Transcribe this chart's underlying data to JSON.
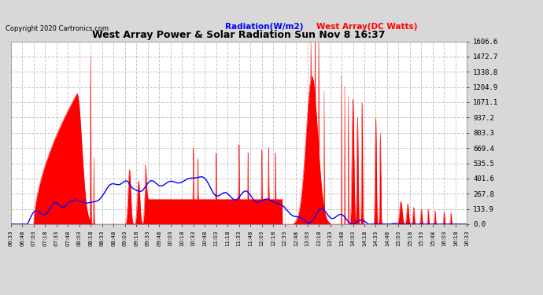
{
  "title": "West Array Power & Solar Radiation Sun Nov 8 16:37",
  "copyright": "Copyright 2020 Cartronics.com",
  "legend_radiation": "Radiation(W/m2)",
  "legend_west": "West Array(DC Watts)",
  "y_ticks": [
    0.0,
    133.9,
    267.8,
    401.6,
    535.5,
    669.4,
    803.3,
    937.2,
    1071.1,
    1204.9,
    1338.8,
    1472.7,
    1606.6
  ],
  "y_max": 1606.6,
  "x_labels": [
    "06:33",
    "06:48",
    "07:03",
    "07:18",
    "07:33",
    "07:48",
    "08:03",
    "08:18",
    "08:33",
    "08:48",
    "09:03",
    "09:18",
    "09:33",
    "09:48",
    "10:03",
    "10:18",
    "10:33",
    "10:48",
    "11:03",
    "11:18",
    "11:33",
    "11:48",
    "12:03",
    "12:18",
    "12:33",
    "12:48",
    "13:03",
    "13:18",
    "13:33",
    "13:48",
    "14:03",
    "14:18",
    "14:33",
    "14:48",
    "15:03",
    "15:18",
    "15:33",
    "15:48",
    "16:03",
    "16:18",
    "16:33"
  ],
  "bg_color": "#d8d8d8",
  "plot_bg_color": "#ffffff",
  "grid_color": "#c0c0c0",
  "fill_color": "#ff0000",
  "line_color_blue": "#0000ff",
  "title_color": "#000000",
  "copyright_color": "#000000",
  "radiation_label_color": "#0000ff",
  "west_label_color": "#ff0000"
}
